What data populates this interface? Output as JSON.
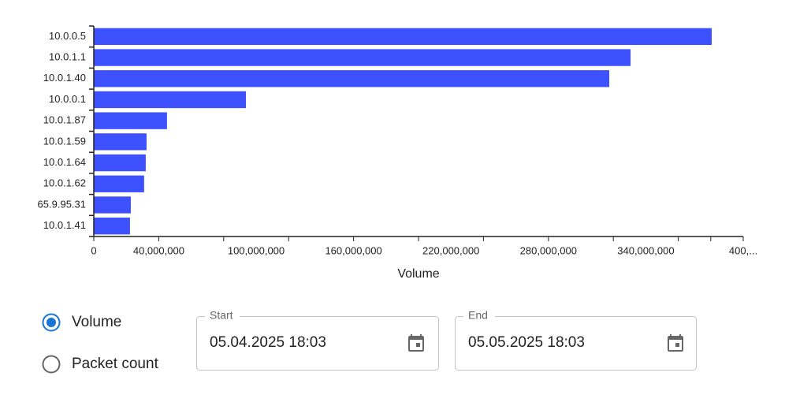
{
  "chart_data": {
    "type": "barh",
    "x_label": "Volume",
    "categories": [
      "10.0.0.5",
      "10.0.1.1",
      "10.0.1.40",
      "10.0.0.1",
      "10.0.1.87",
      "10.0.1.59",
      "10.0.1.64",
      "10.0.1.62",
      "65.9.95.31",
      "10.0.1.41"
    ],
    "values": [
      380600000,
      330600000,
      317500000,
      93700000,
      45100000,
      32500000,
      32000000,
      31000000,
      22800000,
      22300000
    ],
    "color": "#3d51ff",
    "xlim": [
      0,
      400000000
    ],
    "xticks": [
      0,
      {
        "value": 40000000,
        "label": "40,000,000"
      },
      {
        "value": 100000000,
        "label": "100,000,000"
      },
      {
        "value": 160000000,
        "label": "160,000,000"
      },
      {
        "value": 220000000,
        "label": "220,000,000"
      },
      {
        "value": 280000000,
        "label": "280,000,000"
      },
      {
        "value": 340000000,
        "label": "340,000,000"
      },
      {
        "value": 400000000,
        "label": "400,..."
      }
    ],
    "xminorticks": [
      0,
      40000000,
      80000000,
      120000000,
      160000000,
      200000000,
      240000000,
      280000000,
      320000000,
      360000000,
      380000000,
      400000000
    ]
  },
  "controls": {
    "metric_options": [
      "Volume",
      "Packet count"
    ],
    "start": {
      "label": "Start",
      "value": "05.04.2025 18:03"
    },
    "end": {
      "label": "End",
      "value": "05.05.2025 18:03"
    }
  }
}
